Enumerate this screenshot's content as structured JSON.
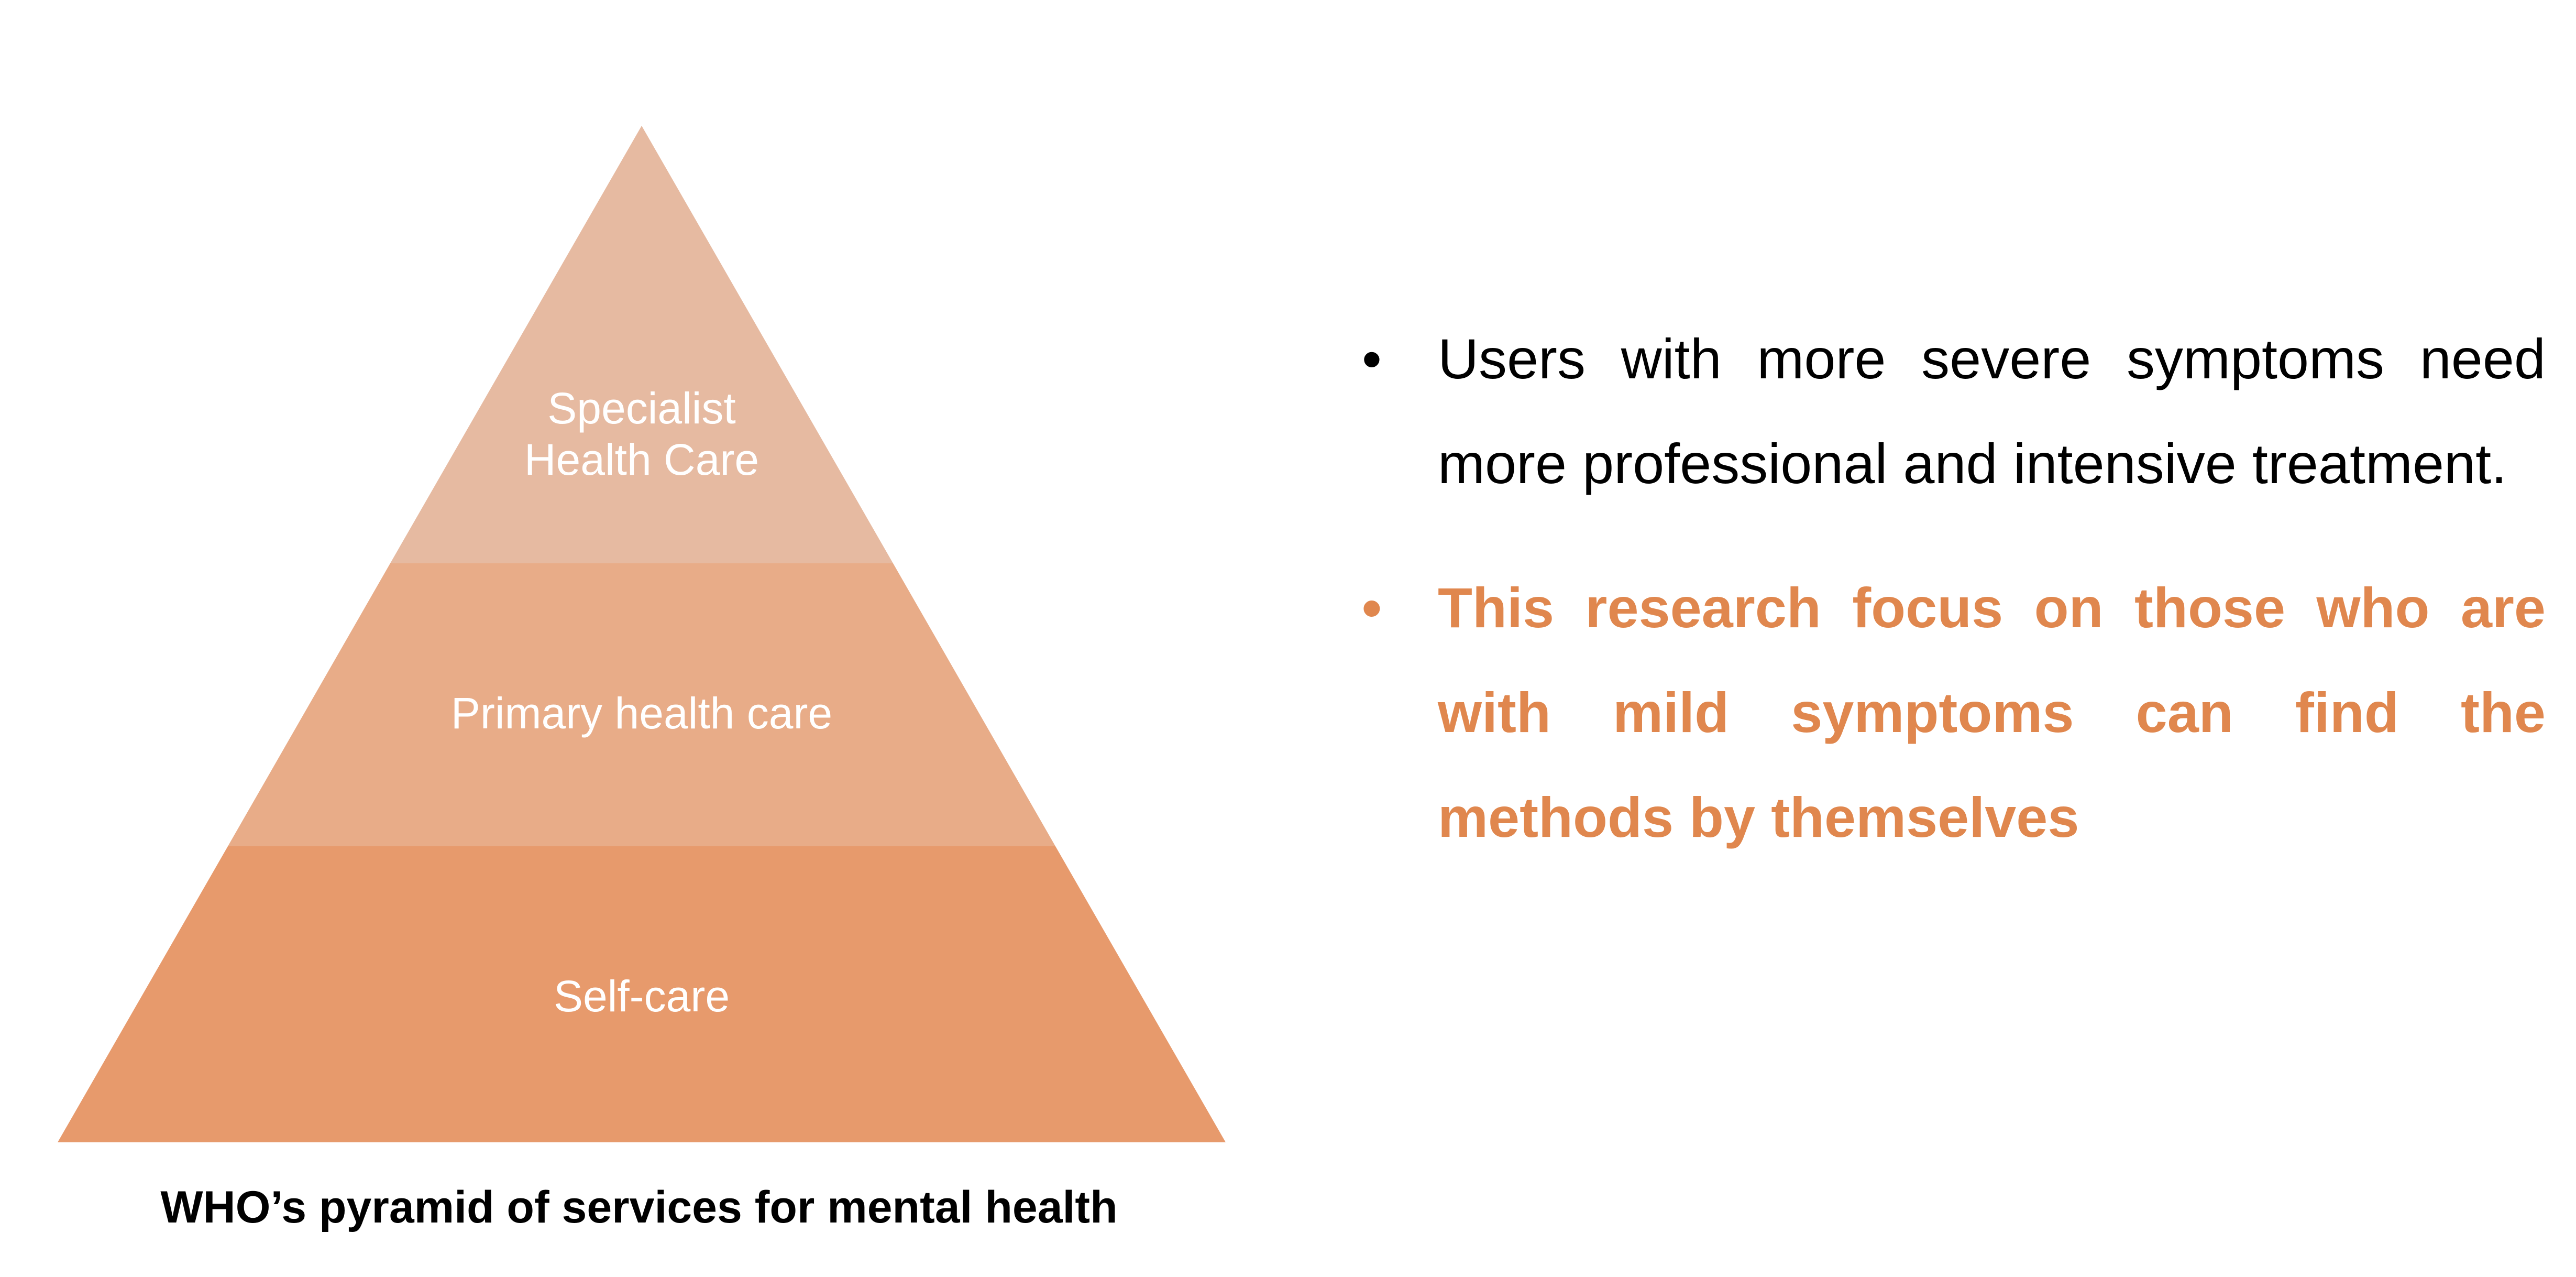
{
  "pyramid": {
    "tiers": [
      {
        "lines": [
          "Specialist",
          "Health Care"
        ],
        "color": "#e6baa1"
      },
      {
        "lines": [
          "Primary health care"
        ],
        "color": "#e8ac88"
      },
      {
        "lines": [
          "Self-care"
        ],
        "color": "#e79a6c"
      }
    ],
    "caption": "WHO’s pyramid of services for mental health"
  },
  "bullets": [
    {
      "marker": "•",
      "text": "Users with more severe symptoms need more professional and intensive treatment.",
      "color": "#000000"
    },
    {
      "marker": "•",
      "text": "This research focus on those who are with mild symptoms can find the methods by themselves",
      "color": "#e0874e"
    }
  ]
}
